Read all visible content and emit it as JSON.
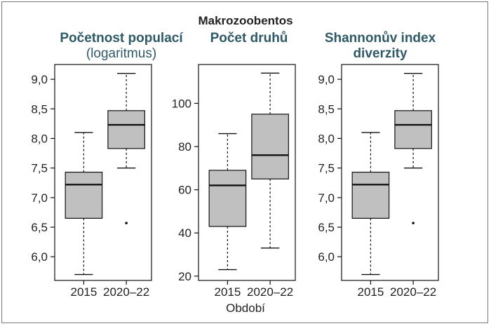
{
  "figure": {
    "title": "Makrozoobentos",
    "xlabel": "Období"
  },
  "panels": [
    {
      "title": "Početnost populací",
      "subtitle": "(logaritmus)"
    },
    {
      "title": "Počet druhů",
      "subtitle": ""
    },
    {
      "title": "Shannonův index",
      "subtitle": "diverzity"
    }
  ],
  "colors": {
    "box_fill": "#c0c0c0",
    "line": "#111111",
    "title": "#2f5966"
  },
  "chart_data": [
    {
      "type": "box",
      "title": "Početnost populací (logaritmus)",
      "xlabel": "Období",
      "ylabel": "",
      "ylim": [
        5.6,
        9.25
      ],
      "yticks": [
        "6,0",
        "6,5",
        "7,0",
        "7,5",
        "8,0",
        "8,5",
        "9,0"
      ],
      "ytick_values": [
        6.0,
        6.5,
        7.0,
        7.5,
        8.0,
        8.5,
        9.0
      ],
      "categories": [
        "2015",
        "2020–22"
      ],
      "boxes": [
        {
          "whislo": 5.7,
          "q1": 6.65,
          "med": 7.22,
          "q3": 7.43,
          "whishi": 8.1,
          "fliers": []
        },
        {
          "whislo": 7.5,
          "q1": 7.83,
          "med": 8.23,
          "q3": 8.47,
          "whishi": 9.1,
          "fliers": [
            6.57
          ]
        }
      ]
    },
    {
      "type": "box",
      "title": "Počet druhů",
      "xlabel": "Období",
      "ylabel": "",
      "ylim": [
        18,
        118
      ],
      "yticks": [
        "20",
        "40",
        "60",
        "80",
        "100"
      ],
      "ytick_values": [
        20,
        40,
        60,
        80,
        100
      ],
      "categories": [
        "2015",
        "2020–22"
      ],
      "boxes": [
        {
          "whislo": 23,
          "q1": 43,
          "med": 62,
          "q3": 69,
          "whishi": 86,
          "fliers": []
        },
        {
          "whislo": 33,
          "q1": 65,
          "med": 76,
          "q3": 95,
          "whishi": 114,
          "fliers": []
        }
      ]
    },
    {
      "type": "box",
      "title": "Shannonův index diverzity",
      "xlabel": "Období",
      "ylabel": "",
      "ylim": [
        5.6,
        9.25
      ],
      "yticks": [
        "6,0",
        "6,5",
        "7,0",
        "7,5",
        "8,0",
        "8,5",
        "9,0"
      ],
      "ytick_values": [
        6.0,
        6.5,
        7.0,
        7.5,
        8.0,
        8.5,
        9.0
      ],
      "categories": [
        "2015",
        "2020–22"
      ],
      "boxes": [
        {
          "whislo": 5.7,
          "q1": 6.65,
          "med": 7.22,
          "q3": 7.43,
          "whishi": 8.1,
          "fliers": []
        },
        {
          "whislo": 7.5,
          "q1": 7.83,
          "med": 8.23,
          "q3": 8.47,
          "whishi": 9.1,
          "fliers": [
            6.57
          ]
        }
      ]
    }
  ]
}
